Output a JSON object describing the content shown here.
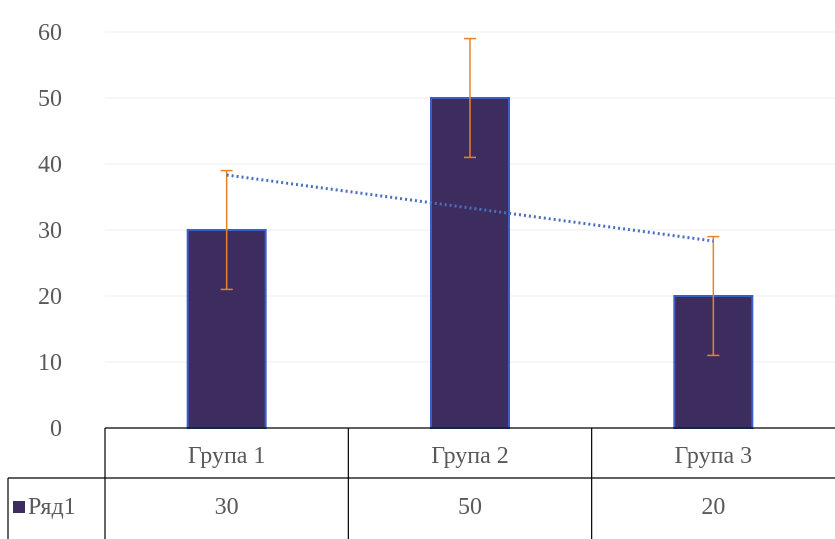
{
  "chart_data": {
    "type": "bar",
    "categories": [
      "Група 1",
      "Група 2",
      "Група 3"
    ],
    "series": [
      {
        "name": "Ряд1",
        "values": [
          30,
          50,
          20
        ],
        "error": [
          9,
          9,
          9
        ],
        "color": "#3d2d5e"
      }
    ],
    "ylim": [
      0,
      60
    ],
    "yticks": [
      0,
      10,
      20,
      30,
      40,
      50,
      60
    ],
    "trendline": {
      "type": "linear",
      "style": "dotted",
      "color": "#4a6fc0"
    },
    "error_bar_color": "#e8822a",
    "bar_edge_color": "#3a5fc8",
    "grid": true,
    "legend": "data-table",
    "data_table": {
      "rows": [
        {
          "label": "Ряд1",
          "values": [
            "30",
            "50",
            "20"
          ]
        }
      ]
    }
  }
}
